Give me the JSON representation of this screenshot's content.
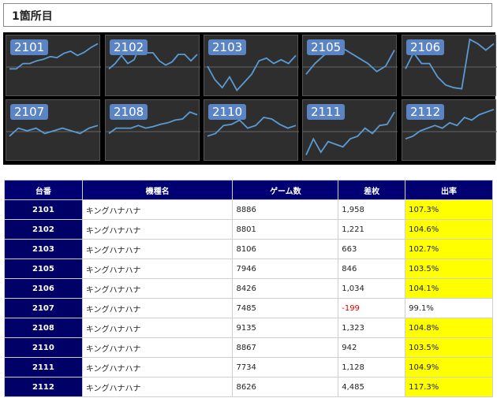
{
  "header": {
    "title": "1箇所目"
  },
  "panels": [
    {
      "label": "2101",
      "trend": [
        0.45,
        0.45,
        0.55,
        0.55,
        0.6,
        0.63,
        0.68,
        0.66,
        0.74,
        0.78,
        0.7,
        0.76,
        0.85,
        0.92
      ]
    },
    {
      "label": "2102",
      "trend": [
        0.45,
        0.55,
        0.7,
        0.55,
        0.62,
        0.9,
        0.75,
        0.75,
        0.6,
        0.52,
        0.58,
        0.72,
        0.72,
        0.6,
        0.72
      ]
    },
    {
      "label": "2103",
      "trend": [
        0.5,
        0.25,
        0.1,
        0.3,
        0.05,
        0.2,
        0.35,
        0.6,
        0.65,
        0.55,
        0.62,
        0.55,
        0.7
      ]
    },
    {
      "label": "2105",
      "trend": [
        0.35,
        0.55,
        0.7,
        0.8,
        0.85,
        0.75,
        0.65,
        0.55,
        0.4,
        0.5,
        0.8
      ]
    },
    {
      "label": "2106",
      "trend": [
        0.45,
        0.75,
        0.55,
        0.55,
        0.3,
        0.15,
        0.1,
        0.08,
        1.0,
        0.92,
        0.8,
        0.92
      ]
    },
    {
      "label": "2107",
      "trend": [
        0.4,
        0.55,
        0.5,
        0.55,
        0.45,
        0.5,
        0.55,
        0.5,
        0.45,
        0.55,
        0.6
      ]
    },
    {
      "label": "2108",
      "trend": [
        0.45,
        0.55,
        0.55,
        0.55,
        0.6,
        0.55,
        0.58,
        0.62,
        0.65,
        0.7,
        0.72,
        0.85,
        0.8
      ]
    },
    {
      "label": "2110",
      "trend": [
        0.4,
        0.45,
        0.6,
        0.62,
        0.7,
        0.55,
        0.6,
        0.75,
        0.72,
        0.62,
        0.55,
        0.6
      ]
    },
    {
      "label": "2111",
      "trend": [
        0.05,
        0.35,
        0.1,
        0.3,
        0.25,
        0.2,
        0.35,
        0.4,
        0.55,
        0.45,
        0.6,
        0.62,
        0.85
      ]
    },
    {
      "label": "2112",
      "trend": [
        0.35,
        0.4,
        0.5,
        0.55,
        0.6,
        0.55,
        0.65,
        0.6,
        0.75,
        0.7,
        0.8,
        0.85,
        0.9
      ]
    }
  ],
  "table": {
    "headers": [
      "台番",
      "機種名",
      "ゲーム数",
      "差枚",
      "出率"
    ],
    "rows": [
      {
        "no": "2101",
        "name": "キングハナハナ",
        "games": "8886",
        "diff": "1,958",
        "rate": "107.3%",
        "neg": false,
        "hl": true
      },
      {
        "no": "2102",
        "name": "キングハナハナ",
        "games": "8801",
        "diff": "1,221",
        "rate": "104.6%",
        "neg": false,
        "hl": true
      },
      {
        "no": "2103",
        "name": "キングハナハナ",
        "games": "8106",
        "diff": "663",
        "rate": "102.7%",
        "neg": false,
        "hl": true
      },
      {
        "no": "2105",
        "name": "キングハナハナ",
        "games": "7946",
        "diff": "846",
        "rate": "103.5%",
        "neg": false,
        "hl": true
      },
      {
        "no": "2106",
        "name": "キングハナハナ",
        "games": "8426",
        "diff": "1,034",
        "rate": "104.1%",
        "neg": false,
        "hl": true
      },
      {
        "no": "2107",
        "name": "キングハナハナ",
        "games": "7485",
        "diff": "-199",
        "rate": "99.1%",
        "neg": true,
        "hl": false
      },
      {
        "no": "2108",
        "name": "キングハナハナ",
        "games": "9135",
        "diff": "1,323",
        "rate": "104.8%",
        "neg": false,
        "hl": true
      },
      {
        "no": "2110",
        "name": "キングハナハナ",
        "games": "8867",
        "diff": "942",
        "rate": "103.5%",
        "neg": false,
        "hl": true
      },
      {
        "no": "2111",
        "name": "キングハナハナ",
        "games": "7734",
        "diff": "1,128",
        "rate": "104.9%",
        "neg": false,
        "hl": true
      },
      {
        "no": "2112",
        "name": "キングハナハナ",
        "games": "8626",
        "diff": "4,485",
        "rate": "117.3%",
        "neg": false,
        "hl": true
      }
    ]
  },
  "colors": {
    "line": "#5b9bd5",
    "highlight": "#ffff00",
    "header_bg": "#000073",
    "negative": "#e00000"
  }
}
